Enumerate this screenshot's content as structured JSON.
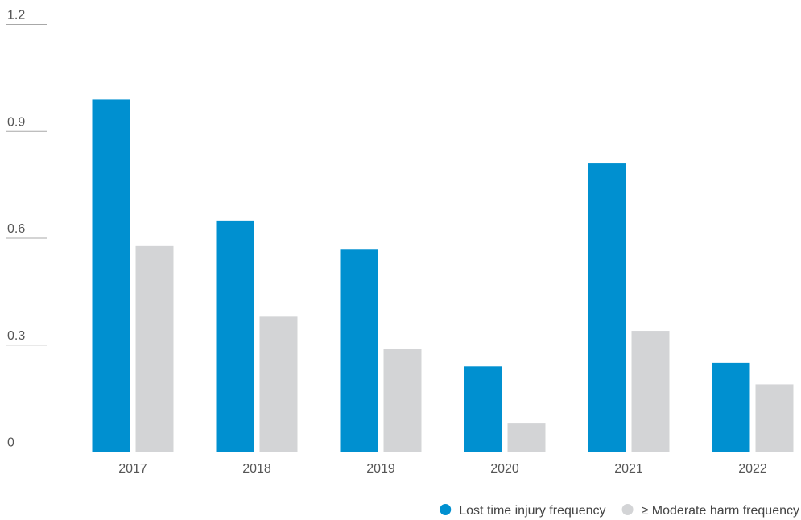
{
  "chart_data": {
    "type": "bar",
    "categories": [
      "2017",
      "2018",
      "2019",
      "2020",
      "2021",
      "2022"
    ],
    "series": [
      {
        "name": "Lost time injury frequency",
        "color": "#0090d0",
        "values": [
          0.99,
          0.65,
          0.57,
          0.24,
          0.81,
          0.25
        ]
      },
      {
        "name": "≥ Moderate harm frequency",
        "color": "#d3d4d6",
        "values": [
          0.58,
          0.38,
          0.29,
          0.08,
          0.34,
          0.19
        ]
      }
    ],
    "y_ticks": [
      "0",
      "0.3",
      "0.6",
      "0.9",
      "1.2"
    ],
    "ylim": [
      0,
      1.2
    ],
    "title": "",
    "xlabel": "",
    "ylabel": "",
    "grid": false,
    "legend_position": "bottom-right"
  }
}
